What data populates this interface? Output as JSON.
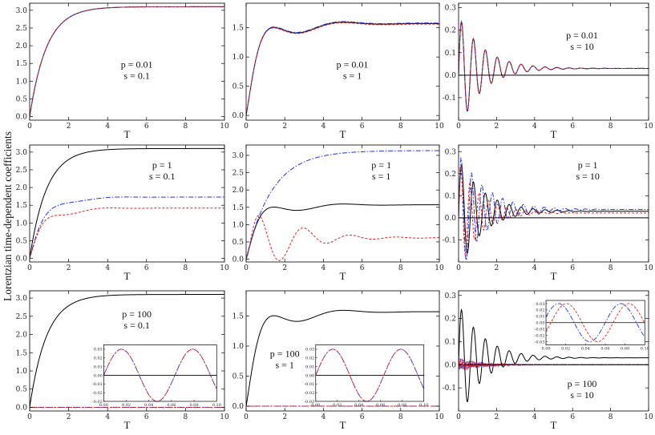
{
  "figure": {
    "ylabel": "Lorentzian time-dependent coefficients",
    "xlabel": "T"
  },
  "chart_data": [
    {
      "type": "line",
      "panel": "r1c1",
      "annot": [
        "p = 0.01",
        "s = 0.1"
      ],
      "xlim": [
        0,
        10
      ],
      "ylim": [
        -0.1,
        3.2
      ],
      "xticks": [
        0,
        2,
        4,
        6,
        8,
        10
      ],
      "yticks": [
        0.0,
        0.5,
        1.0,
        1.5,
        2.0,
        2.5,
        3.0
      ],
      "ytick_labels": [
        "0.0",
        "0.5",
        "1.0",
        "1.5",
        "2.0",
        "2.5",
        "3.0"
      ],
      "series": [
        {
          "name": "solid",
          "color": "#000000",
          "style": "solid",
          "model": "rise",
          "params": {
            "A": 3.1,
            "k": 1.15
          }
        },
        {
          "name": "dash-dot",
          "color": "#2233dd",
          "style": "dashdot",
          "model": "rise",
          "params": {
            "A": 3.1,
            "k": 1.15
          }
        },
        {
          "name": "dashed",
          "color": "#dd2222",
          "style": "dashed",
          "model": "rise",
          "params": {
            "A": 3.1,
            "k": 1.15
          }
        }
      ]
    },
    {
      "type": "line",
      "panel": "r1c2",
      "annot": [
        "p = 0.01",
        "s = 1"
      ],
      "xlim": [
        0,
        10
      ],
      "ylim": [
        -0.08,
        1.92
      ],
      "xticks": [
        0,
        2,
        4,
        6,
        8,
        10
      ],
      "yticks": [
        0.0,
        0.5,
        1.0,
        1.5
      ],
      "ytick_labels": [
        "0.0",
        "0.5",
        "1.0",
        "1.5"
      ],
      "series": [
        {
          "name": "solid",
          "color": "#000000",
          "style": "solid",
          "model": "over",
          "params": {
            "A": 1.57,
            "a": 0.62,
            "w": 1.5,
            "ph": 0,
            "d": 0.6
          }
        },
        {
          "name": "dash-dot",
          "color": "#2233dd",
          "style": "dashdot",
          "model": "over",
          "params": {
            "A": 1.58,
            "a": 0.62,
            "w": 1.5,
            "ph": 0,
            "d": 0.6
          }
        },
        {
          "name": "dashed",
          "color": "#dd2222",
          "style": "dashed",
          "model": "over",
          "params": {
            "A": 1.56,
            "a": 0.62,
            "w": 1.5,
            "ph": 0,
            "d": 0.6
          }
        }
      ]
    },
    {
      "type": "line",
      "panel": "r1c3",
      "annot": [
        "p = 0.01",
        "s = 10"
      ],
      "xlim": [
        0,
        10
      ],
      "ylim": [
        -0.2,
        0.32
      ],
      "xticks": [
        0,
        2,
        4,
        6,
        8,
        10
      ],
      "yticks": [
        -0.1,
        0.0,
        0.1,
        0.2,
        0.3
      ],
      "ytick_labels": [
        "-0.1",
        "0.0",
        "0.1",
        "0.2",
        "0.3"
      ],
      "series": [
        {
          "name": "solid",
          "color": "#000000",
          "style": "solid",
          "model": "osc",
          "params": {
            "A": 0.03,
            "B": 0.26,
            "w": 10,
            "k": 0.8
          }
        },
        {
          "name": "dash-dot",
          "color": "#2233dd",
          "style": "dashdot",
          "model": "osc",
          "params": {
            "A": 0.03,
            "B": 0.26,
            "w": 10,
            "k": 0.8
          }
        },
        {
          "name": "dashed",
          "color": "#dd2222",
          "style": "dashed",
          "model": "osc",
          "params": {
            "A": 0.03,
            "B": 0.26,
            "w": 10,
            "k": 0.8
          }
        },
        {
          "name": "zero",
          "color": "#000000",
          "style": "solid",
          "model": "const",
          "params": {
            "c": 0
          }
        }
      ]
    },
    {
      "type": "line",
      "panel": "r2c1",
      "annot": [
        "p = 1",
        "s = 0.1"
      ],
      "xlim": [
        0,
        10
      ],
      "ylim": [
        -0.1,
        3.2
      ],
      "xticks": [
        0,
        2,
        4,
        6,
        8,
        10
      ],
      "yticks": [
        0.0,
        0.5,
        1.0,
        1.5,
        2.0,
        2.5,
        3.0
      ],
      "ytick_labels": [
        "0.0",
        "0.5",
        "1.0",
        "1.5",
        "2.0",
        "2.5",
        "3.0"
      ],
      "series": [
        {
          "name": "solid",
          "color": "#000000",
          "style": "solid",
          "model": "rise",
          "params": {
            "A": 3.1,
            "k": 1.15
          }
        },
        {
          "name": "dash-dot",
          "color": "#2233dd",
          "style": "dashdot",
          "model": "over",
          "params": {
            "A": 1.73,
            "a": 0.26,
            "w": 1.6,
            "ph": 0,
            "d": 0.7
          }
        },
        {
          "name": "dashed",
          "color": "#dd2222",
          "style": "dashed",
          "model": "over",
          "params": {
            "A": 1.42,
            "a": 0.4,
            "w": 1.9,
            "ph": 0,
            "d": 0.8
          }
        }
      ]
    },
    {
      "type": "line",
      "panel": "r2c2",
      "annot": [
        "p = 1",
        "s = 1"
      ],
      "xlim": [
        0,
        10
      ],
      "ylim": [
        -0.08,
        3.3
      ],
      "xticks": [
        0,
        2,
        4,
        6,
        8,
        10
      ],
      "yticks": [
        0.0,
        0.5,
        1.0,
        1.5,
        2.0,
        2.5,
        3.0
      ],
      "ytick_labels": [
        "0.0",
        "0.5",
        "1.0",
        "1.5",
        "2.0",
        "2.5",
        "3.0"
      ],
      "series": [
        {
          "name": "solid",
          "color": "#000000",
          "style": "solid",
          "model": "over",
          "params": {
            "A": 1.57,
            "a": 0.62,
            "w": 1.5,
            "ph": 0,
            "d": 0.6
          }
        },
        {
          "name": "dash-dot",
          "color": "#2233dd",
          "style": "dashdot",
          "model": "rise",
          "params": {
            "A": 3.14,
            "k": 0.75
          }
        },
        {
          "name": "dashed",
          "color": "#dd2222",
          "style": "dashed",
          "model": "over",
          "params": {
            "A": 0.62,
            "a": 1.55,
            "w": 2.6,
            "ph": 0,
            "d": 0.55
          }
        }
      ]
    },
    {
      "type": "line",
      "panel": "r2c3",
      "annot": [
        "p = 1",
        "s = 10"
      ],
      "xlim": [
        0,
        10
      ],
      "ylim": [
        -0.2,
        0.33
      ],
      "xticks": [
        0,
        2,
        4,
        6,
        8,
        10
      ],
      "yticks": [
        -0.1,
        0.0,
        0.1,
        0.2,
        0.3
      ],
      "ytick_labels": [
        "-0.1",
        "0.0",
        "0.1",
        "0.2",
        "0.3"
      ],
      "series": [
        {
          "name": "solid",
          "color": "#000000",
          "style": "solid",
          "model": "osc",
          "params": {
            "A": 0.03,
            "B": 0.26,
            "w": 10,
            "k": 0.8
          }
        },
        {
          "name": "dash-dot",
          "color": "#2233dd",
          "style": "dashdot",
          "model": "osc",
          "params": {
            "A": 0.038,
            "B": 0.29,
            "w": 11.5,
            "k": 0.75
          }
        },
        {
          "name": "dashed",
          "color": "#dd2222",
          "style": "dashed",
          "model": "osc",
          "params": {
            "A": 0.022,
            "B": 0.25,
            "w": 13,
            "k": 0.9
          }
        },
        {
          "name": "zero",
          "color": "#000000",
          "style": "solid",
          "model": "const",
          "params": {
            "c": 0
          }
        }
      ]
    },
    {
      "type": "line",
      "panel": "r3c1",
      "annot": [
        "p = 100",
        "s = 0.1"
      ],
      "xlim": [
        0,
        10
      ],
      "ylim": [
        -0.1,
        3.2
      ],
      "xticks": [
        0,
        2,
        4,
        6,
        8,
        10
      ],
      "yticks": [
        0.0,
        0.5,
        1.0,
        1.5,
        2.0,
        2.5,
        3.0
      ],
      "ytick_labels": [
        "0.0",
        "0.5",
        "1.0",
        "1.5",
        "2.0",
        "2.5",
        "3.0"
      ],
      "series": [
        {
          "name": "solid",
          "color": "#000000",
          "style": "solid",
          "model": "rise",
          "params": {
            "A": 3.1,
            "k": 1.15
          }
        },
        {
          "name": "dash-dot",
          "color": "#2233dd",
          "style": "dashdot",
          "model": "const",
          "params": {
            "c": 0.0
          }
        },
        {
          "name": "dashed",
          "color": "#dd2222",
          "style": "dashed",
          "model": "const",
          "params": {
            "c": 0.0
          }
        }
      ],
      "inset": {
        "xlim": [
          0,
          0.1
        ],
        "ylim": [
          -0.03,
          0.035
        ],
        "xticks": [
          0.0,
          0.02,
          0.04,
          0.06,
          0.08,
          0.1
        ],
        "xtick_labels": [
          "0.00",
          "0.02",
          "0.04",
          "0.06",
          "0.08",
          "0.10"
        ],
        "yticks": [
          -0.03,
          -0.02,
          -0.01,
          0.0,
          0.01,
          0.02,
          0.03
        ],
        "ytick_labels": [
          "-0.03",
          "-0.02",
          "-0.01",
          "0.00",
          "0.01",
          "0.02",
          "0.03"
        ],
        "series": [
          {
            "name": "dash-dot",
            "color": "#2233dd",
            "style": "dashdot",
            "amp": 0.03,
            "period": 0.063,
            "phase": 0
          },
          {
            "name": "dashed",
            "color": "#dd2222",
            "style": "dashed",
            "amp": 0.03,
            "period": 0.063,
            "phase": 0
          }
        ]
      }
    },
    {
      "type": "line",
      "panel": "r3c2",
      "annot": [
        "p = 100",
        "s = 1"
      ],
      "xlim": [
        0,
        10
      ],
      "ylim": [
        -0.08,
        1.92
      ],
      "xticks": [
        0,
        2,
        4,
        6,
        8,
        10
      ],
      "yticks": [
        0.0,
        0.5,
        1.0,
        1.5
      ],
      "ytick_labels": [
        "0.0",
        "0.5",
        "1.0",
        "1.5"
      ],
      "series": [
        {
          "name": "solid",
          "color": "#000000",
          "style": "solid",
          "model": "over",
          "params": {
            "A": 1.57,
            "a": 0.62,
            "w": 1.5,
            "ph": 0,
            "d": 0.6
          }
        },
        {
          "name": "dash-dot",
          "color": "#2233dd",
          "style": "dashdot",
          "model": "const",
          "params": {
            "c": 0.0
          }
        },
        {
          "name": "dashed",
          "color": "#dd2222",
          "style": "dashed",
          "model": "const",
          "params": {
            "c": 0.0
          }
        }
      ],
      "inset": {
        "xlim": [
          0,
          0.1
        ],
        "ylim": [
          -0.03,
          0.035
        ],
        "xticks": [
          0.0,
          0.02,
          0.04,
          0.06,
          0.08,
          0.1
        ],
        "xtick_labels": [
          "0.00",
          "0.02",
          "0.04",
          "0.06",
          "0.08",
          "0.10"
        ],
        "yticks": [
          -0.03,
          -0.02,
          -0.01,
          0.0,
          0.01,
          0.02,
          0.03
        ],
        "ytick_labels": [
          "-0.03",
          "-0.02",
          "-0.01",
          "0.00",
          "0.01",
          "0.02",
          "0.03"
        ],
        "series": [
          {
            "name": "dash-dot",
            "color": "#2233dd",
            "style": "dashdot",
            "amp": 0.03,
            "period": 0.063,
            "phase": 0
          },
          {
            "name": "dashed",
            "color": "#dd2222",
            "style": "dashed",
            "amp": 0.03,
            "period": 0.063,
            "phase": 0
          }
        ]
      }
    },
    {
      "type": "line",
      "panel": "r3c3",
      "annot": [
        "p = 100",
        "s = 10"
      ],
      "xlim": [
        0,
        10
      ],
      "ylim": [
        -0.2,
        0.32
      ],
      "xticks": [
        0,
        2,
        4,
        6,
        8,
        10
      ],
      "yticks": [
        -0.1,
        0.0,
        0.1,
        0.2,
        0.3
      ],
      "ytick_labels": [
        "-0.1",
        "0.0",
        "0.1",
        "0.2",
        "0.3"
      ],
      "series": [
        {
          "name": "solid",
          "color": "#000000",
          "style": "solid",
          "model": "osc",
          "params": {
            "A": 0.03,
            "B": 0.26,
            "w": 10,
            "k": 0.8
          }
        },
        {
          "name": "dash-dot",
          "color": "#2233dd",
          "style": "dashdot",
          "model": "noise",
          "params": {
            "amp": 0.03,
            "k": 0.8
          }
        },
        {
          "name": "dashed",
          "color": "#dd2222",
          "style": "dashed",
          "model": "noise",
          "params": {
            "amp": 0.028,
            "k": 0.8
          }
        },
        {
          "name": "zero",
          "color": "#000000",
          "style": "solid",
          "model": "const",
          "params": {
            "c": 0
          }
        }
      ],
      "inset": {
        "xlim": [
          0,
          0.1
        ],
        "ylim": [
          -0.035,
          0.035
        ],
        "xticks": [
          0.0,
          0.02,
          0.04,
          0.06,
          0.08,
          0.1
        ],
        "xtick_labels": [
          "0.00",
          "0.02",
          "0.04",
          "0.06",
          "0.08",
          "0.10"
        ],
        "yticks": [
          -0.03,
          -0.02,
          -0.01,
          0.0,
          0.01,
          0.02,
          0.03
        ],
        "ytick_labels": [
          "-0.03",
          "-0.02",
          "-0.01",
          "0.00",
          "0.01",
          "0.02",
          "0.03"
        ],
        "series": [
          {
            "name": "dash-dot",
            "color": "#2233dd",
            "style": "dashdot",
            "amp": 0.03,
            "period": 0.063,
            "phase": 0.3
          },
          {
            "name": "dashed",
            "color": "#dd2222",
            "style": "dashed",
            "amp": 0.03,
            "period": 0.063,
            "phase": -0.5
          }
        ]
      }
    }
  ]
}
